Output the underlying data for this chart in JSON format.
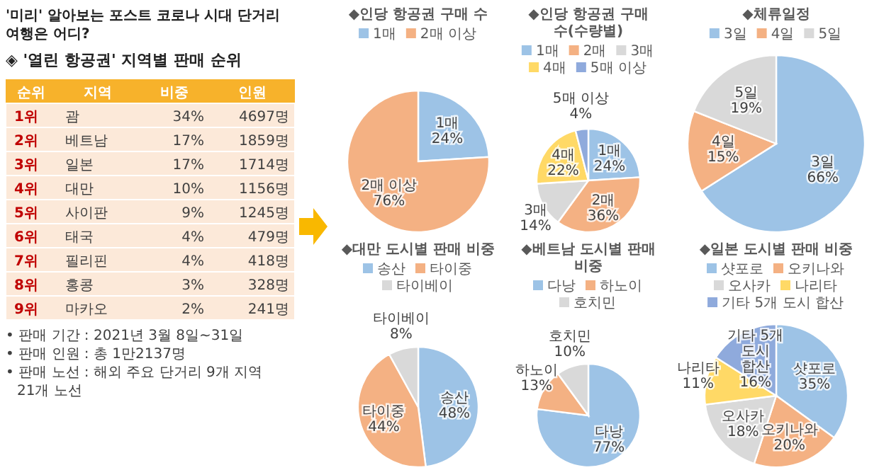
{
  "chart_data": [
    {
      "type": "other",
      "subtitle": "'미리' 알아보는 포스트 코로나 시대 단거리 여행은 어디?",
      "title": "◈ '열린 항공권' 지역별 판매 순위",
      "xlabel": "지역",
      "categories": [
        "괌",
        "베트남",
        "일본",
        "대만",
        "사이판",
        "태국",
        "필리핀",
        "홍콩",
        "마카오"
      ],
      "series": [
        {
          "name": "순위",
          "values": [
            1,
            2,
            3,
            4,
            5,
            6,
            7,
            8,
            9
          ],
          "value_labels": [
            "1위",
            "2위",
            "3위",
            "4위",
            "5위",
            "6위",
            "7위",
            "8위",
            "9위"
          ]
        },
        {
          "name": "비중",
          "values": [
            34,
            17,
            17,
            10,
            9,
            4,
            4,
            3,
            2
          ],
          "value_labels": [
            "34%",
            "17%",
            "17%",
            "10%",
            "9%",
            "4%",
            "4%",
            "3%",
            "2%"
          ]
        },
        {
          "name": "인원",
          "values": [
            4697,
            1859,
            1714,
            1156,
            1245,
            479,
            418,
            328,
            241
          ],
          "value_labels": [
            "4697명",
            "1859명",
            "1714명",
            "1156명",
            "1245명",
            "479명",
            "418명",
            "328명",
            "241명"
          ]
        }
      ],
      "annotations": [
        "• 판매 기간 : 2021년 3월 8일~31일",
        "• 판매 인원 : 총 1만2137명",
        "• 판매 노선 : 해외 주요 단거리 9개 지역 21개 노선"
      ]
    },
    {
      "type": "pie",
      "title": "◆인당 항공권 구매 수",
      "categories": [
        "1매",
        "2매 이상"
      ],
      "values": [
        24,
        76
      ],
      "colors": [
        "#9dc3e6",
        "#f4b183"
      ],
      "value_labels": [
        "24%",
        "76%"
      ],
      "legend": "top"
    },
    {
      "type": "pie",
      "title": "◆인당 항공권 구매 수(수량별)",
      "categories": [
        "1매",
        "2매",
        "3매",
        "4매",
        "5매 이상"
      ],
      "values": [
        24,
        36,
        14,
        22,
        4
      ],
      "colors": [
        "#9dc3e6",
        "#f4b183",
        "#d9d9d9",
        "#ffd966",
        "#8faadc"
      ],
      "value_labels": [
        "24%",
        "36%",
        "14%",
        "22%",
        "4%"
      ],
      "legend": "top"
    },
    {
      "type": "pie",
      "title": "◆체류일정",
      "categories": [
        "3일",
        "4일",
        "5일"
      ],
      "values": [
        66,
        15,
        19
      ],
      "colors": [
        "#9dc3e6",
        "#f4b183",
        "#d9d9d9"
      ],
      "value_labels": [
        "66%",
        "15%",
        "19%"
      ],
      "legend": "top"
    },
    {
      "type": "pie",
      "title": "◆대만 도시별 판매 비중",
      "categories": [
        "송산",
        "타이중",
        "타이베이"
      ],
      "values": [
        48,
        44,
        8
      ],
      "colors": [
        "#9dc3e6",
        "#f4b183",
        "#d9d9d9"
      ],
      "value_labels": [
        "48%",
        "44%",
        "8%"
      ],
      "legend": "top"
    },
    {
      "type": "pie",
      "title": "◆베트남 도시별 판매 비중",
      "categories": [
        "다낭",
        "하노이",
        "호치민"
      ],
      "values": [
        77,
        13,
        10
      ],
      "colors": [
        "#9dc3e6",
        "#f4b183",
        "#d9d9d9"
      ],
      "value_labels": [
        "77%",
        "13%",
        "10%"
      ],
      "legend": "top"
    },
    {
      "type": "pie",
      "title": "◆일본 도시별 판매 비중",
      "categories": [
        "샷포로",
        "오키나와",
        "오사카",
        "나리타",
        "기타 5개 도시 합산"
      ],
      "values": [
        35,
        20,
        18,
        11,
        16
      ],
      "colors": [
        "#9dc3e6",
        "#f4b183",
        "#d9d9d9",
        "#ffd966",
        "#8faadc"
      ],
      "value_labels": [
        "35%",
        "20%",
        "18%",
        "11%",
        "16%"
      ],
      "legend": "top"
    }
  ]
}
